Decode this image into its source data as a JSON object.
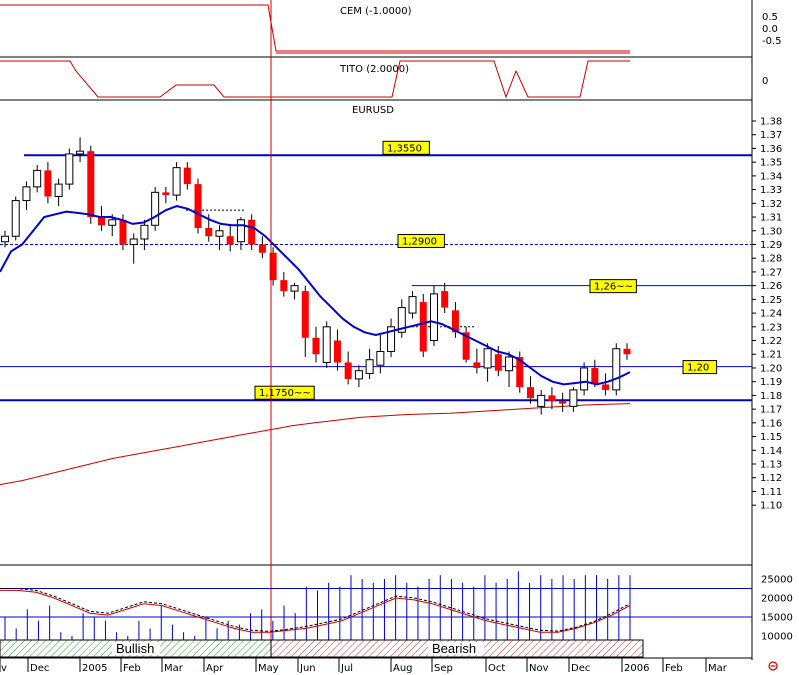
{
  "panels": {
    "cem": {
      "title": "CEM (-1.0000)",
      "ticks": [
        "0.5",
        "0.0",
        "-0.5"
      ]
    },
    "tito": {
      "title": "TITO (2.0000)",
      "ticks": [
        "0"
      ]
    },
    "main": {
      "title": "EURUSD"
    },
    "volume": {
      "ticks": [
        "25000",
        "20000",
        "15000",
        "10000"
      ]
    }
  },
  "colors": {
    "bull_candle": "#ffffff",
    "bear_candle": "#ff0000",
    "blue_line": "#0000cc",
    "red_line": "#cc0000",
    "label_bg": "#ffff00",
    "bull_band": "#339933",
    "bear_band": "#cc3333"
  },
  "bands": {
    "bullish": "Bullish",
    "bearish": "Bearish"
  },
  "months": [
    "v",
    "Dec",
    "2005",
    "Feb",
    "Mar",
    "Apr",
    "May",
    "Jun",
    "Jul",
    "Aug",
    "Sep",
    "Oct",
    "Nov",
    "Dec",
    "2006",
    "Feb",
    "Mar"
  ],
  "chart_data": {
    "type": "candlestick",
    "title": "EURUSD",
    "ylim": [
      1.08,
      1.39
    ],
    "y_ticks": [
      1.1,
      1.11,
      1.12,
      1.13,
      1.14,
      1.15,
      1.16,
      1.17,
      1.18,
      1.19,
      1.2,
      1.21,
      1.22,
      1.23,
      1.24,
      1.25,
      1.26,
      1.27,
      1.28,
      1.29,
      1.3,
      1.31,
      1.32,
      1.33,
      1.34,
      1.35,
      1.36,
      1.37,
      1.38
    ],
    "level_labels": [
      {
        "text": "1,3550",
        "value": 1.355
      },
      {
        "text": "1,2900",
        "value": 1.29
      },
      {
        "text": "1,26~~",
        "value": 1.26
      },
      {
        "text": "1,20",
        "value": 1.201
      },
      {
        "text": "1,1750~~",
        "value": 1.1765
      }
    ],
    "candles": [
      [
        1.292,
        1.3,
        1.288,
        1.296
      ],
      [
        1.296,
        1.325,
        1.293,
        1.322
      ],
      [
        1.322,
        1.336,
        1.315,
        1.332
      ],
      [
        1.332,
        1.348,
        1.328,
        1.344
      ],
      [
        1.344,
        1.35,
        1.32,
        1.325
      ],
      [
        1.325,
        1.338,
        1.318,
        1.334
      ],
      [
        1.334,
        1.36,
        1.33,
        1.356
      ],
      [
        1.356,
        1.368,
        1.35,
        1.358
      ],
      [
        1.358,
        1.362,
        1.305,
        1.31
      ],
      [
        1.31,
        1.318,
        1.3,
        1.304
      ],
      [
        1.304,
        1.312,
        1.296,
        1.308
      ],
      [
        1.308,
        1.312,
        1.286,
        1.29
      ],
      [
        1.29,
        1.298,
        1.276,
        1.294
      ],
      [
        1.294,
        1.308,
        1.286,
        1.304
      ],
      [
        1.304,
        1.332,
        1.3,
        1.328
      ],
      [
        1.328,
        1.332,
        1.32,
        1.326
      ],
      [
        1.326,
        1.35,
        1.322,
        1.346
      ],
      [
        1.346,
        1.35,
        1.33,
        1.334
      ],
      [
        1.334,
        1.338,
        1.298,
        1.302
      ],
      [
        1.302,
        1.312,
        1.292,
        1.296
      ],
      [
        1.296,
        1.304,
        1.286,
        1.3
      ],
      [
        1.296,
        1.305,
        1.285,
        1.29
      ],
      [
        1.292,
        1.31,
        1.286,
        1.308
      ],
      [
        1.308,
        1.312,
        1.286,
        1.29
      ],
      [
        1.29,
        1.296,
        1.28,
        1.284
      ],
      [
        1.284,
        1.288,
        1.26,
        1.264
      ],
      [
        1.264,
        1.27,
        1.252,
        1.256
      ],
      [
        1.256,
        1.262,
        1.25,
        1.26
      ],
      [
        1.256,
        1.26,
        1.208,
        1.222
      ],
      [
        1.222,
        1.23,
        1.204,
        1.21
      ],
      [
        1.204,
        1.234,
        1.2,
        1.23
      ],
      [
        1.22,
        1.228,
        1.198,
        1.204
      ],
      [
        1.204,
        1.212,
        1.188,
        1.192
      ],
      [
        1.192,
        1.202,
        1.186,
        1.198
      ],
      [
        1.196,
        1.214,
        1.192,
        1.206
      ],
      [
        1.202,
        1.224,
        1.196,
        1.212
      ],
      [
        1.212,
        1.236,
        1.208,
        1.23
      ],
      [
        1.226,
        1.25,
        1.222,
        1.244
      ],
      [
        1.24,
        1.256,
        1.236,
        1.252
      ],
      [
        1.248,
        1.254,
        1.208,
        1.212
      ],
      [
        1.22,
        1.26,
        1.216,
        1.254
      ],
      [
        1.256,
        1.262,
        1.24,
        1.244
      ],
      [
        1.242,
        1.248,
        1.222,
        1.226
      ],
      [
        1.226,
        1.23,
        1.204,
        1.206
      ],
      [
        1.204,
        1.214,
        1.196,
        1.2
      ],
      [
        1.2,
        1.218,
        1.19,
        1.214
      ],
      [
        1.21,
        1.216,
        1.194,
        1.198
      ],
      [
        1.198,
        1.212,
        1.186,
        1.208
      ],
      [
        1.208,
        1.212,
        1.182,
        1.186
      ],
      [
        1.186,
        1.194,
        1.174,
        1.178
      ],
      [
        1.172,
        1.184,
        1.166,
        1.18
      ],
      [
        1.18,
        1.186,
        1.17,
        1.176
      ],
      [
        1.176,
        1.182,
        1.168,
        1.174
      ],
      [
        1.172,
        1.186,
        1.168,
        1.184
      ],
      [
        1.184,
        1.204,
        1.18,
        1.2
      ],
      [
        1.2,
        1.206,
        1.186,
        1.188
      ],
      [
        1.188,
        1.196,
        1.18,
        1.184
      ],
      [
        1.184,
        1.218,
        1.18,
        1.214
      ],
      [
        1.214,
        1.218,
        1.206,
        1.21
      ]
    ],
    "ma_blue": [
      1.27,
      1.285,
      1.29,
      1.3,
      1.31,
      1.312,
      1.314,
      1.313,
      1.312,
      1.31,
      1.31,
      1.308,
      1.305,
      1.306,
      1.31,
      1.315,
      1.318,
      1.316,
      1.312,
      1.308,
      1.305,
      1.304,
      1.304,
      1.302,
      1.296,
      1.288,
      1.28,
      1.272,
      1.262,
      1.252,
      1.244,
      1.236,
      1.23,
      1.226,
      1.224,
      1.226,
      1.228,
      1.23,
      1.232,
      1.234,
      1.232,
      1.228,
      1.224,
      1.22,
      1.216,
      1.212,
      1.21,
      1.206,
      1.2,
      1.194,
      1.19,
      1.188,
      1.189,
      1.19,
      1.188,
      1.19,
      1.193,
      1.197
    ],
    "ma_red": [
      1.115,
      1.118,
      1.122,
      1.126,
      1.13,
      1.134,
      1.137,
      1.14,
      1.143,
      1.146,
      1.149,
      1.152,
      1.155,
      1.158,
      1.16,
      1.162,
      1.164,
      1.165,
      1.166,
      1.1665,
      1.167,
      1.168,
      1.169,
      1.17,
      1.171,
      1.172,
      1.173,
      1.1735,
      1.174
    ],
    "cem": [
      0.0,
      1.0,
      1.0,
      1.0,
      1.0,
      1.0,
      1.0,
      1.0,
      -1.0,
      -1.0,
      -1.0,
      -1.0,
      -1.0,
      -1.0,
      -1.0,
      -1.0
    ],
    "volume": {
      "bars": [
        15000,
        12000,
        17000,
        14000,
        18000,
        11000,
        10000,
        16000,
        15000,
        14000,
        11000,
        10000,
        14000,
        12000,
        18000,
        13000,
        11000,
        10000,
        15000,
        12000,
        14000,
        13000,
        16000,
        17000,
        14000,
        18000,
        16000,
        23000,
        22000,
        24000,
        23000,
        26000,
        25000,
        24000,
        25000,
        26000,
        24000,
        23000,
        25000,
        26000,
        25000,
        24000,
        23000,
        26000,
        24000,
        25000,
        27000,
        24000,
        26000,
        25000,
        26000,
        25000,
        26000,
        26000,
        25000,
        26000,
        26000
      ],
      "line1": [
        22000,
        22000,
        21500,
        20000,
        18000,
        16000,
        15500,
        17000,
        18500,
        18000,
        16500,
        15000,
        13500,
        12000,
        11000,
        11000,
        11500,
        12000,
        13000,
        14000,
        16000,
        18000,
        20000,
        19500,
        18500,
        17000,
        15500,
        14000,
        13000,
        12000,
        11000,
        11000,
        12000,
        13500,
        15500,
        18000
      ],
      "line2": [
        22500,
        22500,
        22000,
        20500,
        18500,
        16500,
        16000,
        17500,
        19000,
        18500,
        17000,
        15500,
        14000,
        12500,
        11500,
        11200,
        11800,
        12500,
        13500,
        14500,
        16500,
        18500,
        20500,
        20000,
        19000,
        17500,
        16000,
        14500,
        13500,
        12500,
        11500,
        11300,
        12300,
        13800,
        16000,
        18500
      ]
    }
  }
}
